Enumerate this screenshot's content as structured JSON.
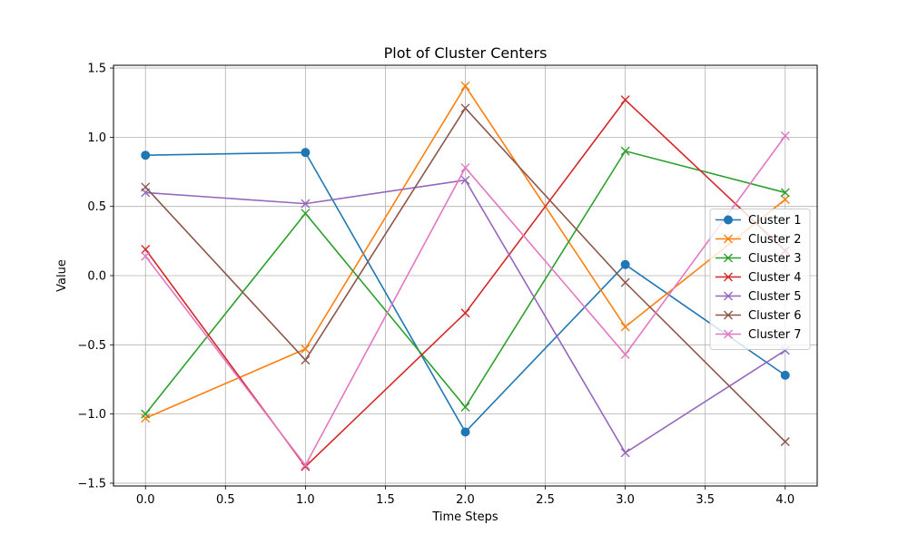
{
  "chart_data": {
    "type": "line",
    "title": "Plot of Cluster Centers",
    "xlabel": "Time Steps",
    "ylabel": "Value",
    "x": [
      0,
      1,
      2,
      3,
      4
    ],
    "xlim": [
      -0.2,
      4.2
    ],
    "ylim": [
      -1.52,
      1.52
    ],
    "xticks": [
      0.0,
      0.5,
      1.0,
      1.5,
      2.0,
      2.5,
      3.0,
      3.5,
      4.0
    ],
    "xtick_labels": [
      "0.0",
      "0.5",
      "1.0",
      "1.5",
      "2.0",
      "2.5",
      "3.0",
      "3.5",
      "4.0"
    ],
    "yticks": [
      -1.5,
      -1.0,
      -0.5,
      0.0,
      0.5,
      1.0,
      1.5
    ],
    "ytick_labels": [
      "−1.5",
      "−1.0",
      "−0.5",
      "0.0",
      "0.5",
      "1.0",
      "1.5"
    ],
    "grid": true,
    "legend_position": "center-right",
    "series": [
      {
        "name": "Cluster 1",
        "color": "#1f77b4",
        "marker": "circle",
        "values": [
          0.87,
          0.89,
          -1.13,
          0.08,
          -0.72
        ]
      },
      {
        "name": "Cluster 2",
        "color": "#ff7f0e",
        "marker": "x",
        "values": [
          -1.03,
          -0.53,
          1.37,
          -0.37,
          0.55
        ]
      },
      {
        "name": "Cluster 3",
        "color": "#2ca02c",
        "marker": "x",
        "values": [
          -1.0,
          0.45,
          -0.95,
          0.9,
          0.6
        ]
      },
      {
        "name": "Cluster 4",
        "color": "#d62728",
        "marker": "x",
        "values": [
          0.19,
          -1.38,
          -0.27,
          1.27,
          0.18
        ]
      },
      {
        "name": "Cluster 5",
        "color": "#9467bd",
        "marker": "x",
        "values": [
          0.6,
          0.52,
          0.69,
          -1.28,
          -0.54
        ]
      },
      {
        "name": "Cluster 6",
        "color": "#8c564b",
        "marker": "x",
        "values": [
          0.64,
          -0.61,
          1.21,
          -0.05,
          -1.2
        ]
      },
      {
        "name": "Cluster 7",
        "color": "#e377c2",
        "marker": "x",
        "values": [
          0.14,
          -1.37,
          0.78,
          -0.57,
          1.01
        ]
      }
    ]
  }
}
